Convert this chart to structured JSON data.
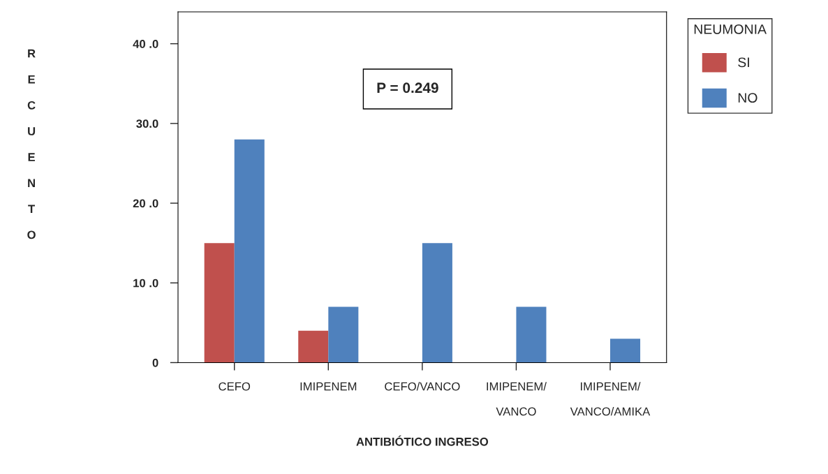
{
  "chart_data": {
    "type": "bar",
    "xlabel": "ANTIBIÓTICO INGRESO",
    "ylabel": "RECUENTO",
    "legend_title": "NEUMONIA",
    "categories": [
      "CEFO",
      "IMIPENEM",
      "CEFO/VANCO",
      "IMIPENEM/\n\nVANCO",
      "IMIPENEM/\n\nVANCO/AMIKA"
    ],
    "series": [
      {
        "name": "SI",
        "color": "#c0504d",
        "values": [
          15,
          4,
          null,
          null,
          null
        ]
      },
      {
        "name": "NO",
        "color": "#4f81bd",
        "values": [
          28,
          7,
          15,
          7,
          3
        ]
      }
    ],
    "ylim": [
      0,
      44
    ],
    "yticks": [
      {
        "value": 0,
        "label": "0"
      },
      {
        "value": 10,
        "label": "10 .0"
      },
      {
        "value": 20,
        "label": "20 .0"
      },
      {
        "value": 30,
        "label": "30.0"
      },
      {
        "value": 40,
        "label": "40 .0"
      }
    ],
    "annotations": [
      "P = 0.249"
    ],
    "legend": "right",
    "grid": false
  }
}
